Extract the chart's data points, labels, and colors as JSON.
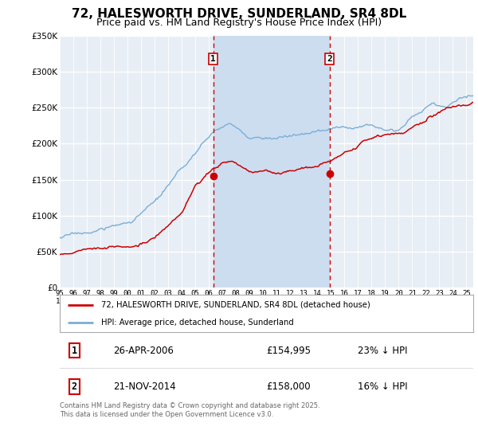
{
  "title": "72, HALESWORTH DRIVE, SUNDERLAND, SR4 8DL",
  "subtitle": "Price paid vs. HM Land Registry's House Price Index (HPI)",
  "footer": "Contains HM Land Registry data © Crown copyright and database right 2025.\nThis data is licensed under the Open Government Licence v3.0.",
  "legend_line1": "72, HALESWORTH DRIVE, SUNDERLAND, SR4 8DL (detached house)",
  "legend_line2": "HPI: Average price, detached house, Sunderland",
  "sale1_date": "26-APR-2006",
  "sale1_price": "£154,995",
  "sale1_hpi": "23% ↓ HPI",
  "sale2_date": "21-NOV-2014",
  "sale2_price": "£158,000",
  "sale2_hpi": "16% ↓ HPI",
  "sale1_x": 2006.32,
  "sale2_x": 2014.9,
  "xmin": 1995,
  "xmax": 2025.5,
  "ymin": 0,
  "ymax": 350000,
  "yticks": [
    0,
    50000,
    100000,
    150000,
    200000,
    250000,
    300000,
    350000
  ],
  "ytick_labels": [
    "£0",
    "£50K",
    "£100K",
    "£150K",
    "£200K",
    "£250K",
    "£300K",
    "£350K"
  ],
  "plot_bg_color": "#e8eef5",
  "grid_color": "#ffffff",
  "red_line_color": "#cc0000",
  "blue_line_color": "#7aaed6",
  "vline_color": "#cc0000",
  "span_color": "#ccddf0",
  "sale1_point_price": 154995,
  "sale2_point_price": 158000,
  "title_fontsize": 11,
  "subtitle_fontsize": 9
}
